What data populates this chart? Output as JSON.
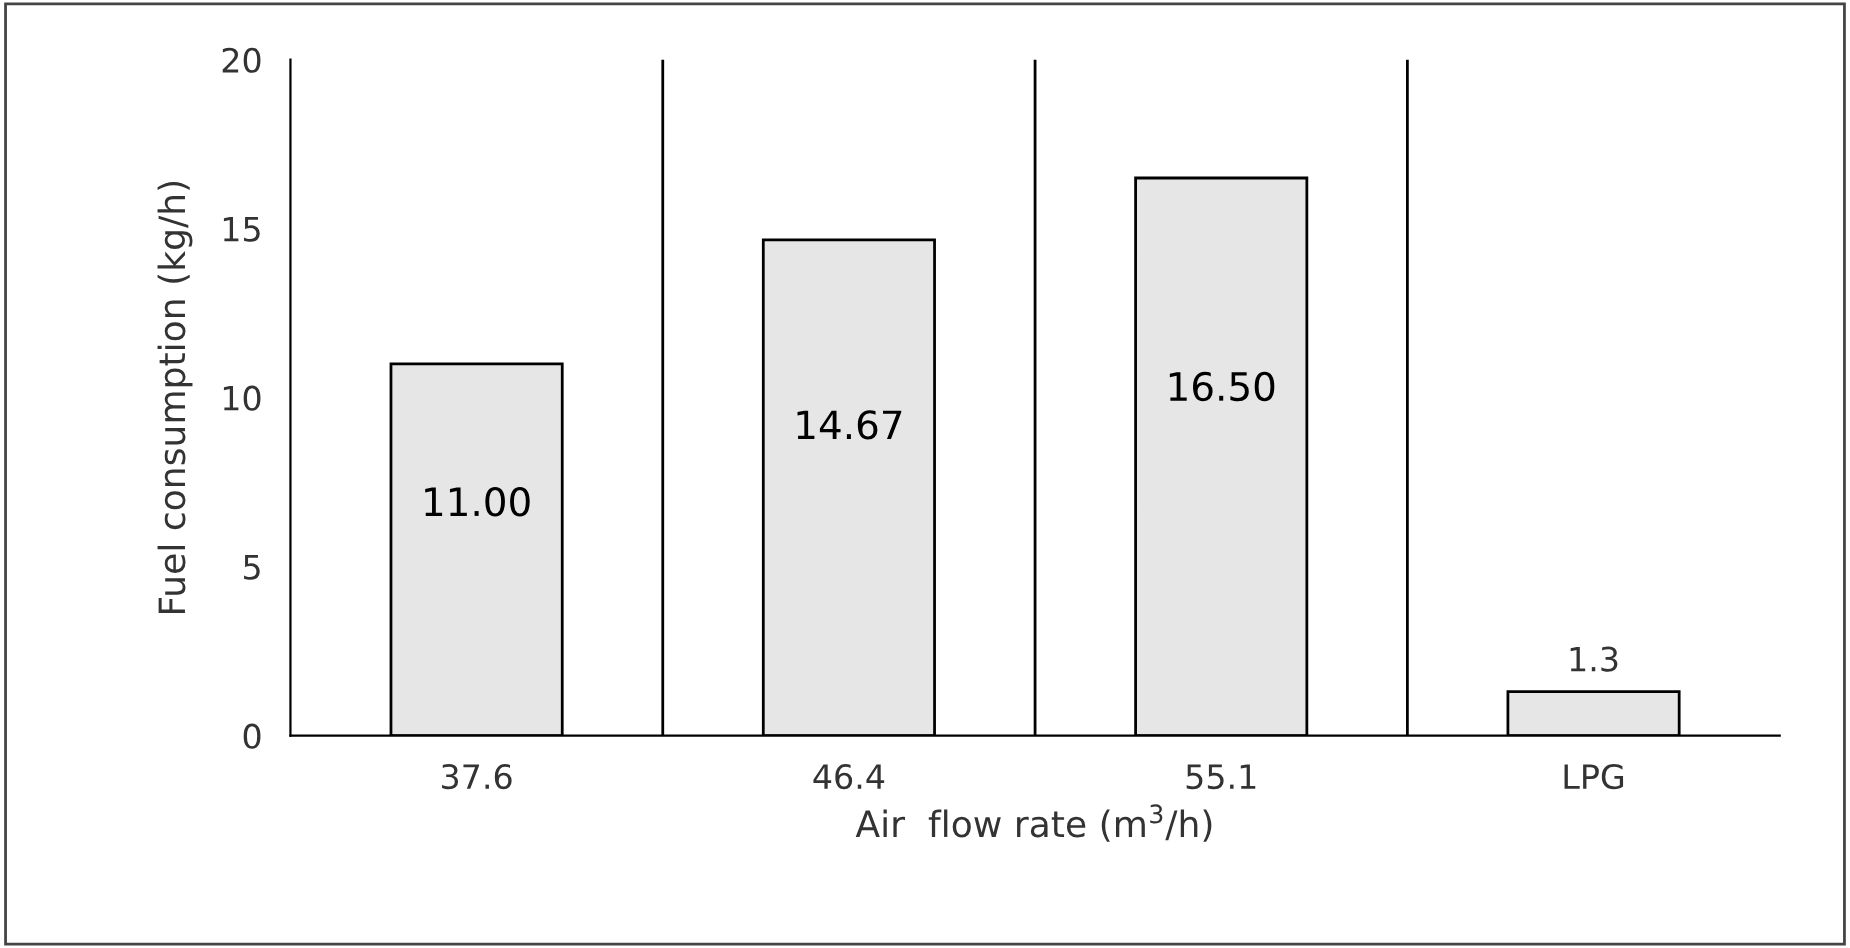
{
  "chart_data": {
    "type": "bar",
    "xlabel": "Air  flow rate (m$^{3}$/h)",
    "ylabel": "Fuel consumption (kg/h)",
    "categories": [
      "37.6",
      "46.4",
      "55.1",
      "LPG"
    ],
    "values": [
      11.0,
      14.67,
      16.5,
      1.3
    ],
    "value_labels": [
      "11.00",
      "14.67",
      "16.50",
      "1.3"
    ],
    "color": "#e6e6e6",
    "ylim": [
      0,
      20
    ],
    "yticks": [
      0,
      5,
      10,
      15,
      20
    ],
    "grid": "x"
  }
}
